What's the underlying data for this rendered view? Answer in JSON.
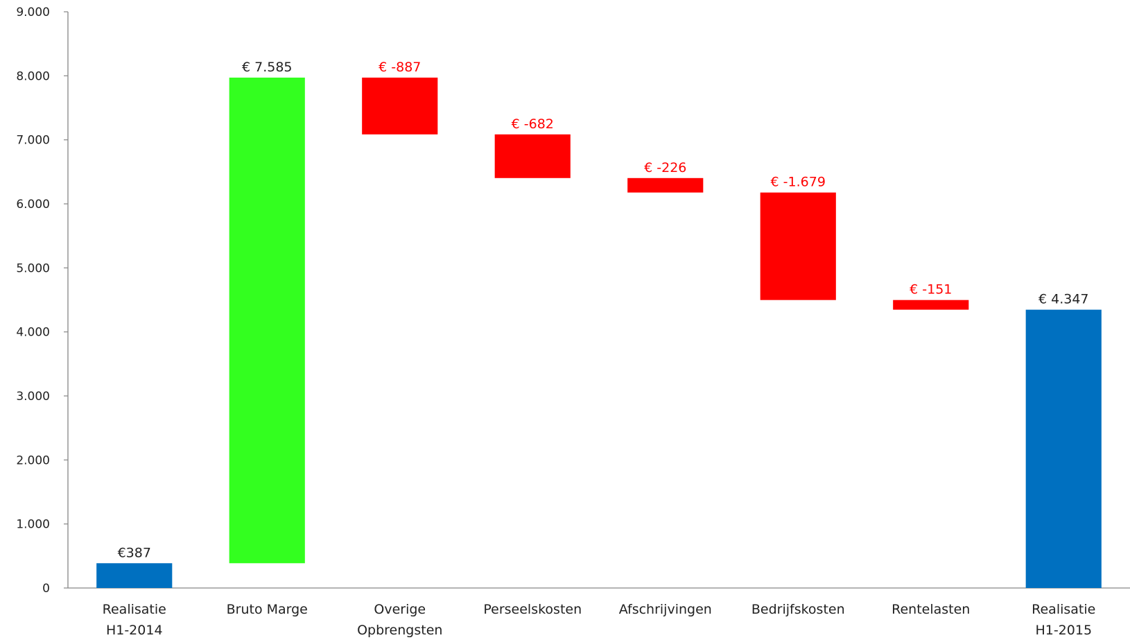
{
  "chart_data": {
    "type": "bar",
    "subtype": "waterfall",
    "title": "",
    "xlabel": "",
    "ylabel": "",
    "ylim": [
      0,
      9000
    ],
    "yticks": [
      "0",
      "1.000",
      "2.000",
      "3.000",
      "4.000",
      "5.000",
      "6.000",
      "7.000",
      "8.000",
      "9.000"
    ],
    "ytick_values": [
      0,
      1000,
      2000,
      3000,
      4000,
      5000,
      6000,
      7000,
      8000,
      9000
    ],
    "grid": false,
    "legend": "none",
    "categories": [
      [
        "Realisatie",
        "H1-2014"
      ],
      [
        "Bruto Marge"
      ],
      [
        "Overige",
        "Opbrengsten"
      ],
      [
        "Perseelskosten"
      ],
      [
        "Afschrijvingen"
      ],
      [
        "Bedrijfskosten"
      ],
      [
        "Rentelasten"
      ],
      [
        "Realisatie",
        "H1-2015"
      ]
    ],
    "bars": [
      {
        "kind": "total",
        "start": 0,
        "end": 387,
        "label": "€387",
        "color": "#0070c0",
        "label_color": "#222222"
      },
      {
        "kind": "increase",
        "start": 387,
        "end": 7972,
        "label": "€ 7.585",
        "color": "#33ff1f",
        "label_color": "#222222"
      },
      {
        "kind": "decrease",
        "start": 7972,
        "end": 7085,
        "label": "€ -887",
        "color": "#ff0000",
        "label_color": "#ff0000"
      },
      {
        "kind": "decrease",
        "start": 7085,
        "end": 6403,
        "label": "€ -682",
        "color": "#ff0000",
        "label_color": "#ff0000"
      },
      {
        "kind": "decrease",
        "start": 6403,
        "end": 6177,
        "label": "€ -226",
        "color": "#ff0000",
        "label_color": "#ff0000"
      },
      {
        "kind": "decrease",
        "start": 6177,
        "end": 4498,
        "label": "€ -1.679",
        "color": "#ff0000",
        "label_color": "#ff0000"
      },
      {
        "kind": "decrease",
        "start": 4498,
        "end": 4347,
        "label": "€ -151",
        "color": "#ff0000",
        "label_color": "#ff0000"
      },
      {
        "kind": "total",
        "start": 0,
        "end": 4347,
        "label": "€ 4.347",
        "color": "#0070c0",
        "label_color": "#222222"
      }
    ]
  }
}
